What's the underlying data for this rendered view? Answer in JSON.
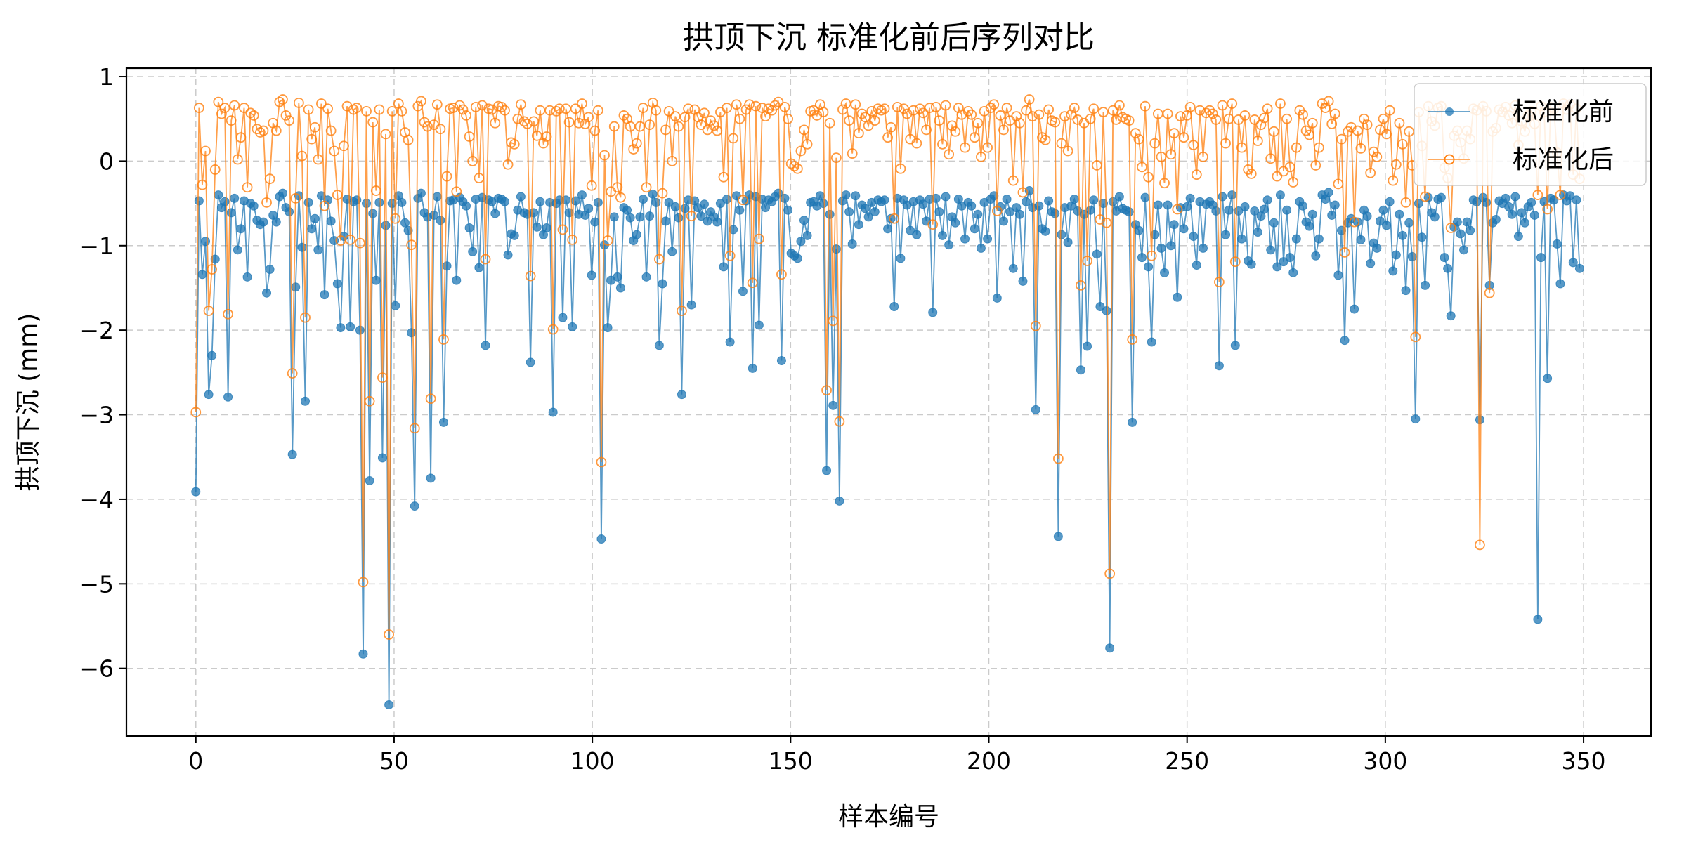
{
  "chart_data": {
    "type": "line",
    "title": "拱顶下沉 标准化前后序列对比",
    "xlabel": "样本编号",
    "ylabel": "拱顶下沉 (mm)",
    "xlim": [
      -17.5,
      367
    ],
    "ylim": [
      -6.8,
      1.1
    ],
    "xticks": [
      0,
      50,
      100,
      150,
      200,
      250,
      300,
      350
    ],
    "xtick_labels": [
      "0",
      "50",
      "100",
      "150",
      "200",
      "250",
      "300",
      "350"
    ],
    "yticks": [
      1,
      0,
      -1,
      -2,
      -3,
      -4,
      -5,
      -6
    ],
    "ytick_labels": [
      "1",
      "0",
      "−1",
      "−2",
      "−3",
      "−4",
      "−5",
      "−6"
    ],
    "grid": true,
    "legend_position": "top-right",
    "x_range": [
      0,
      349
    ],
    "series": [
      {
        "name": "标准化前",
        "color": "#1f77b4",
        "marker": "filled-circle",
        "values": [
          -3.91,
          -0.47,
          -1.34,
          -0.95,
          -2.76,
          -2.3,
          -1.16,
          -0.4,
          -0.55,
          -0.48,
          -2.79,
          -0.61,
          -0.44,
          -1.05,
          -0.8,
          -0.47,
          -1.37,
          -0.5,
          -0.53,
          -0.7,
          -0.75,
          -0.72,
          -1.56,
          -1.28,
          -0.64,
          -0.72,
          -0.42,
          -0.38,
          -0.55,
          -0.6,
          -3.47,
          -1.49,
          -0.41,
          -1.02,
          -2.84,
          -0.49,
          -0.8,
          -0.68,
          -1.05,
          -0.41,
          -1.58,
          -0.46,
          -0.71,
          -0.94,
          -1.45,
          -1.97,
          -0.89,
          -0.45,
          -1.96,
          -0.48,
          -0.46,
          -2.0,
          -5.83,
          -0.5,
          -3.78,
          -0.62,
          -1.41,
          -0.49,
          -3.51,
          -0.76,
          -6.43,
          -0.5,
          -1.71,
          -0.41,
          -0.49,
          -0.73,
          -0.82,
          -2.03,
          -4.08,
          -0.44,
          -0.38,
          -0.61,
          -0.66,
          -3.75,
          -0.64,
          -0.42,
          -0.7,
          -3.09,
          -1.24,
          -0.47,
          -0.46,
          -1.41,
          -0.43,
          -0.48,
          -0.53,
          -0.79,
          -1.07,
          -0.45,
          -1.26,
          -0.43,
          -2.18,
          -0.46,
          -0.48,
          -0.62,
          -0.44,
          -0.45,
          -0.48,
          -1.11,
          -0.86,
          -0.88,
          -0.58,
          -0.42,
          -0.61,
          -0.63,
          -2.38,
          -0.61,
          -0.78,
          -0.48,
          -0.87,
          -0.79,
          -0.49,
          -2.97,
          -0.5,
          -0.46,
          -1.85,
          -0.46,
          -0.61,
          -1.96,
          -0.47,
          -0.63,
          -0.4,
          -0.64,
          -0.56,
          -1.35,
          -0.72,
          -0.49,
          -4.47,
          -0.99,
          -1.97,
          -1.41,
          -0.66,
          -1.37,
          -1.5,
          -0.55,
          -0.58,
          -0.67,
          -0.94,
          -0.87,
          -0.66,
          -0.45,
          -1.37,
          -0.65,
          -0.39,
          -0.49,
          -2.18,
          -1.45,
          -0.71,
          -0.49,
          -1.07,
          -0.54,
          -0.67,
          -2.76,
          -0.56,
          -0.46,
          -1.7,
          -0.47,
          -0.55,
          -0.65,
          -0.51,
          -0.71,
          -0.6,
          -0.66,
          -0.72,
          -0.5,
          -1.25,
          -0.45,
          -2.14,
          -0.81,
          -0.41,
          -0.58,
          -1.54,
          -0.47,
          -0.4,
          -2.45,
          -0.42,
          -1.94,
          -0.45,
          -0.55,
          -0.46,
          -0.48,
          -0.42,
          -0.38,
          -2.36,
          -0.44,
          -0.58,
          -1.09,
          -1.12,
          -1.15,
          -0.95,
          -0.7,
          -0.88,
          -0.49,
          -0.48,
          -0.53,
          -0.41,
          -0.5,
          -3.66,
          -0.63,
          -2.89,
          -1.04,
          -4.02,
          -0.47,
          -0.4,
          -0.6,
          -0.98,
          -0.41,
          -0.75,
          -0.52,
          -0.56,
          -0.66,
          -0.49,
          -0.6,
          -0.46,
          -0.48,
          -0.46,
          -0.8,
          -0.68,
          -1.72,
          -0.44,
          -1.15,
          -0.46,
          -0.52,
          -0.82,
          -0.48,
          -0.87,
          -0.46,
          -0.51,
          -0.71,
          -0.45,
          -1.79,
          -0.44,
          -0.6,
          -0.88,
          -0.42,
          -0.99,
          -0.66,
          -0.73,
          -0.45,
          -0.53,
          -0.92,
          -0.49,
          -0.53,
          -0.8,
          -0.63,
          -1.03,
          -0.49,
          -0.92,
          -0.45,
          -0.41,
          -1.62,
          -0.54,
          -0.71,
          -0.45,
          -0.6,
          -1.27,
          -0.55,
          -0.63,
          -1.42,
          -0.48,
          -0.35,
          -0.55,
          -2.94,
          -0.53,
          -0.8,
          -0.83,
          -0.47,
          -0.6,
          -0.62,
          -4.44,
          -0.87,
          -0.55,
          -0.96,
          -0.53,
          -0.45,
          -0.59,
          -2.47,
          -0.63,
          -2.19,
          -0.58,
          -0.46,
          -1.1,
          -1.72,
          -0.5,
          -1.77,
          -5.76,
          -0.48,
          -0.59,
          -0.42,
          -0.56,
          -0.58,
          -0.6,
          -3.09,
          -0.75,
          -0.82,
          -1.14,
          -0.43,
          -1.25,
          -2.14,
          -0.87,
          -0.52,
          -1.03,
          -1.32,
          -0.52,
          -1.0,
          -0.75,
          -1.61,
          -0.55,
          -0.8,
          -0.54,
          -0.44,
          -0.89,
          -1.23,
          -0.48,
          -1.03,
          -0.51,
          -0.48,
          -0.52,
          -0.59,
          -2.42,
          -0.42,
          -0.87,
          -0.58,
          -0.4,
          -2.18,
          -0.59,
          -0.92,
          -0.54,
          -1.18,
          -1.22,
          -0.59,
          -0.84,
          -0.65,
          -0.57,
          -0.46,
          -1.05,
          -0.73,
          -1.25,
          -0.4,
          -1.19,
          -0.58,
          -1.14,
          -1.32,
          -0.92,
          -0.48,
          -0.53,
          -0.72,
          -0.77,
          -0.63,
          -1.12,
          -0.92,
          -0.4,
          -0.45,
          -0.37,
          -0.64,
          -0.52,
          -1.35,
          -0.82,
          -2.12,
          -0.73,
          -0.68,
          -1.75,
          -0.72,
          -0.93,
          -0.58,
          -0.65,
          -1.21,
          -0.97,
          -1.03,
          -0.71,
          -0.58,
          -0.76,
          -0.48,
          -1.3,
          -1.11,
          -0.63,
          -0.88,
          -1.53,
          -0.73,
          -1.13,
          -3.05,
          -0.5,
          -0.9,
          -1.47,
          -0.43,
          -0.61,
          -0.66,
          -0.45,
          -0.43,
          -1.14,
          -1.27,
          -1.83,
          -0.78,
          -0.72,
          -0.86,
          -1.05,
          -0.72,
          -0.82,
          -0.46,
          -0.48,
          -3.06,
          -0.43,
          -0.49,
          -1.47,
          -0.73,
          -0.69,
          -0.47,
          -0.5,
          -0.44,
          -0.54,
          -0.63,
          -0.42,
          -0.89,
          -0.61,
          -0.73,
          -0.54,
          -0.49,
          -0.64,
          -5.42,
          -1.14,
          -0.48,
          -2.57,
          -0.44,
          -0.46,
          -0.98,
          -1.45,
          -0.4,
          -0.47,
          -0.41,
          -1.2,
          -0.46,
          -1.27
        ]
      },
      {
        "name": "标准化后",
        "color": "#ff7f0e",
        "marker": "hollow-circle",
        "values": [
          -2.97,
          0.63,
          -0.28,
          0.12,
          -1.77,
          -1.28,
          -0.1,
          0.7,
          0.56,
          0.63,
          -1.81,
          0.48,
          0.66,
          0.02,
          0.28,
          0.63,
          -0.31,
          0.57,
          0.54,
          0.38,
          0.34,
          0.36,
          -0.49,
          -0.21,
          0.45,
          0.36,
          0.7,
          0.73,
          0.54,
          0.48,
          -2.51,
          -0.44,
          0.69,
          0.06,
          -1.85,
          0.61,
          0.26,
          0.4,
          0.02,
          0.68,
          -0.53,
          0.62,
          0.36,
          0.12,
          -0.4,
          -0.94,
          0.18,
          0.65,
          -0.93,
          0.61,
          0.63,
          -0.97,
          -4.98,
          0.59,
          -2.84,
          0.46,
          -0.35,
          0.61,
          -2.56,
          0.32,
          -5.6,
          0.59,
          -0.68,
          0.68,
          0.59,
          0.34,
          0.25,
          -0.99,
          -3.16,
          0.65,
          0.71,
          0.46,
          0.41,
          -2.81,
          0.43,
          0.67,
          0.38,
          -2.11,
          -0.18,
          0.62,
          0.63,
          -0.36,
          0.66,
          0.61,
          0.54,
          0.29,
          0.0,
          0.64,
          -0.2,
          0.66,
          -1.16,
          0.62,
          0.61,
          0.45,
          0.65,
          0.64,
          0.6,
          -0.04,
          0.22,
          0.2,
          0.5,
          0.67,
          0.47,
          0.44,
          -1.36,
          0.47,
          0.3,
          0.6,
          0.21,
          0.29,
          0.6,
          -1.99,
          0.59,
          0.62,
          -0.81,
          0.62,
          0.46,
          -0.93,
          0.62,
          0.45,
          0.68,
          0.44,
          0.52,
          -0.29,
          0.36,
          0.6,
          -3.56,
          0.07,
          -0.94,
          -0.36,
          0.41,
          -0.31,
          -0.43,
          0.54,
          0.5,
          0.41,
          0.14,
          0.21,
          0.41,
          0.63,
          -0.31,
          0.43,
          0.69,
          0.6,
          -1.16,
          -0.38,
          0.37,
          0.59,
          0.0,
          0.53,
          0.41,
          -1.77,
          0.52,
          0.62,
          -0.65,
          0.61,
          0.52,
          0.43,
          0.57,
          0.37,
          0.48,
          0.42,
          0.36,
          0.58,
          -0.19,
          0.63,
          -1.12,
          0.27,
          0.67,
          0.5,
          -0.46,
          0.61,
          0.67,
          -1.44,
          0.65,
          -0.92,
          0.63,
          0.53,
          0.62,
          0.6,
          0.66,
          0.7,
          -1.34,
          0.64,
          0.5,
          -0.03,
          -0.06,
          -0.09,
          0.12,
          0.37,
          0.2,
          0.59,
          0.6,
          0.54,
          0.67,
          0.58,
          -2.71,
          0.45,
          -1.89,
          0.04,
          -3.08,
          0.61,
          0.68,
          0.48,
          0.09,
          0.67,
          0.33,
          0.56,
          0.52,
          0.42,
          0.59,
          0.48,
          0.62,
          0.6,
          0.62,
          0.28,
          0.4,
          -0.68,
          0.64,
          -0.09,
          0.62,
          0.56,
          0.26,
          0.6,
          0.21,
          0.62,
          0.57,
          0.37,
          0.63,
          -0.75,
          0.64,
          0.48,
          0.2,
          0.66,
          0.08,
          0.42,
          0.35,
          0.63,
          0.55,
          0.16,
          0.59,
          0.55,
          0.28,
          0.45,
          0.05,
          0.59,
          0.16,
          0.63,
          0.67,
          -0.59,
          0.54,
          0.37,
          0.63,
          0.48,
          -0.23,
          0.53,
          0.45,
          -0.37,
          0.6,
          0.73,
          0.53,
          -1.95,
          0.55,
          0.28,
          0.25,
          0.61,
          0.48,
          0.46,
          -3.52,
          0.21,
          0.53,
          0.12,
          0.55,
          0.63,
          0.49,
          -1.47,
          0.45,
          -1.18,
          0.5,
          0.62,
          -0.05,
          -0.69,
          0.58,
          -0.73,
          -4.88,
          0.6,
          0.49,
          0.66,
          0.52,
          0.5,
          0.48,
          -2.11,
          0.33,
          0.26,
          -0.07,
          0.65,
          -0.19,
          -1.12,
          0.21,
          0.56,
          0.05,
          -0.26,
          0.56,
          0.08,
          0.33,
          -0.57,
          0.53,
          0.28,
          0.54,
          0.64,
          0.19,
          -0.16,
          0.6,
          0.05,
          0.57,
          0.6,
          0.56,
          0.49,
          -1.43,
          0.66,
          0.21,
          0.5,
          0.68,
          -1.19,
          0.49,
          0.16,
          0.54,
          -0.1,
          -0.15,
          0.49,
          0.24,
          0.43,
          0.51,
          0.62,
          0.03,
          0.35,
          -0.18,
          0.68,
          -0.12,
          0.5,
          -0.07,
          -0.25,
          0.16,
          0.6,
          0.55,
          0.36,
          0.31,
          0.45,
          -0.05,
          0.16,
          0.68,
          0.63,
          0.71,
          0.44,
          0.56,
          -0.27,
          0.26,
          -1.08,
          0.35,
          0.4,
          -0.72,
          0.36,
          0.15,
          0.5,
          0.43,
          -0.14,
          0.11,
          0.05,
          0.37,
          0.5,
          0.32,
          0.6,
          -0.23,
          -0.04,
          0.45,
          0.2,
          -0.49,
          0.35,
          -0.05,
          -2.08,
          0.58,
          0.18,
          -0.42,
          0.65,
          0.47,
          0.42,
          0.63,
          0.65,
          -0.08,
          -0.2,
          -0.79,
          0.3,
          0.36,
          0.22,
          0.03,
          0.36,
          0.26,
          0.62,
          0.6,
          -4.54,
          0.65,
          0.59,
          -1.56,
          0.35,
          0.39,
          0.61,
          0.58,
          0.64,
          0.54,
          0.45,
          0.66,
          0.19,
          0.47,
          0.35,
          0.54,
          0.59,
          0.44,
          -0.4,
          0.65,
          0.58,
          -0.57,
          0.64,
          0.62,
          0.1,
          -0.4,
          0.68,
          0.61,
          0.67,
          -0.16,
          0.62,
          -0.21
        ]
      }
    ]
  }
}
